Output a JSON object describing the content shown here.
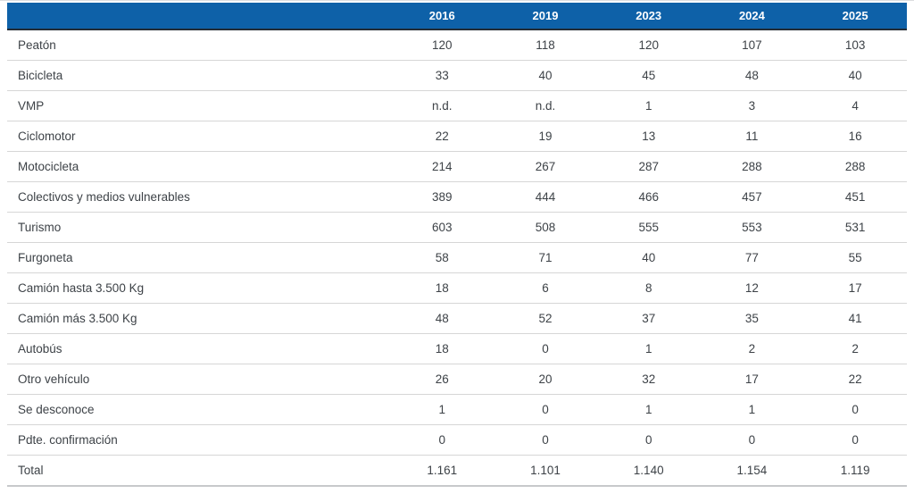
{
  "chart_data": {
    "type": "table",
    "columns": [
      "2016",
      "2019",
      "2023",
      "2024",
      "2025"
    ],
    "rows": [
      {
        "label": "Peatón",
        "values": [
          "120",
          "118",
          "120",
          "107",
          "103"
        ]
      },
      {
        "label": "Bicicleta",
        "values": [
          "33",
          "40",
          "45",
          "48",
          "40"
        ]
      },
      {
        "label": "VMP",
        "values": [
          "n.d.",
          "n.d.",
          "1",
          "3",
          "4"
        ]
      },
      {
        "label": "Ciclomotor",
        "values": [
          "22",
          "19",
          "13",
          "11",
          "16"
        ]
      },
      {
        "label": "Motocicleta",
        "values": [
          "214",
          "267",
          "287",
          "288",
          "288"
        ]
      },
      {
        "label": "Colectivos y medios vulnerables",
        "values": [
          "389",
          "444",
          "466",
          "457",
          "451"
        ]
      },
      {
        "label": "Turismo",
        "values": [
          "603",
          "508",
          "555",
          "553",
          "531"
        ]
      },
      {
        "label": "Furgoneta",
        "values": [
          "58",
          "71",
          "40",
          "77",
          "55"
        ]
      },
      {
        "label": "Camión hasta 3.500 Kg",
        "values": [
          "18",
          "6",
          "8",
          "12",
          "17"
        ]
      },
      {
        "label": "Camión más 3.500 Kg",
        "values": [
          "48",
          "52",
          "37",
          "35",
          "41"
        ]
      },
      {
        "label": "Autobús",
        "values": [
          "18",
          "0",
          "1",
          "2",
          "2"
        ]
      },
      {
        "label": "Otro vehículo",
        "values": [
          "26",
          "20",
          "32",
          "17",
          "22"
        ]
      },
      {
        "label": "Se desconoce",
        "values": [
          "1",
          "0",
          "1",
          "1",
          "0"
        ]
      },
      {
        "label": "Pdte. confirmación",
        "values": [
          "0",
          "0",
          "0",
          "0",
          "0"
        ]
      },
      {
        "label": "Total",
        "values": [
          "1.161",
          "1.101",
          "1.140",
          "1.154",
          "1.119"
        ]
      }
    ],
    "layout": {
      "grid": "horizontal-row-separators",
      "header_align": "center",
      "value_align": "center"
    }
  },
  "theme": {
    "header_bg": "#0e61a8",
    "header_text": "#ffffff",
    "header_border": "#242c35",
    "row_border": "#d6d6d6",
    "cell_text": "#3d4247"
  }
}
